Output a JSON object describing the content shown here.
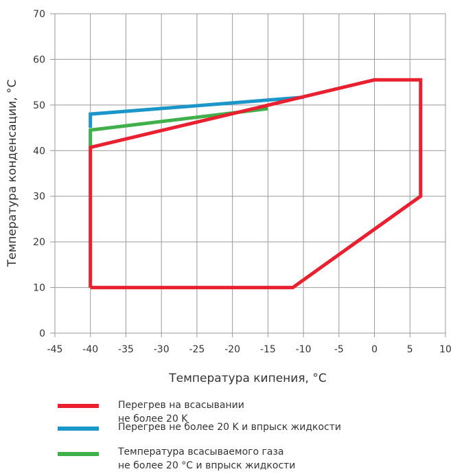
{
  "chart_data": {
    "type": "line",
    "title": "",
    "xlabel": "Температура кипения, °C",
    "ylabel": "Температура конденсации, °C",
    "xlim": [
      -45,
      10
    ],
    "ylim": [
      0,
      70
    ],
    "xticks": [
      -45,
      -40,
      -35,
      -30,
      -25,
      -20,
      -15,
      -10,
      -5,
      0,
      5,
      10
    ],
    "yticks": [
      0,
      10,
      20,
      30,
      40,
      50,
      60,
      70
    ],
    "grid": true,
    "legend_position": "bottom",
    "series": [
      {
        "name": "Перегрев на всасывании\nне более 20 K",
        "color": "#e8202f",
        "x": [
          -40,
          -11.5,
          6.5,
          6.5,
          0,
          -40,
          -40
        ],
        "y": [
          10,
          10,
          30,
          55.5,
          55.5,
          40.7,
          10
        ]
      },
      {
        "name": "Перегрев не более 20 K и впрыск жидкости",
        "color": "#1a96c8",
        "x": [
          -40,
          -40,
          -10
        ],
        "y": [
          45,
          48,
          51.7
        ]
      },
      {
        "name": "Температура всасываемого газа\nне более 20 °C и впрыск жидкости",
        "color": "#3fb04a",
        "x": [
          -40,
          -40,
          -15
        ],
        "y": [
          41,
          44.5,
          49.2
        ]
      }
    ]
  }
}
